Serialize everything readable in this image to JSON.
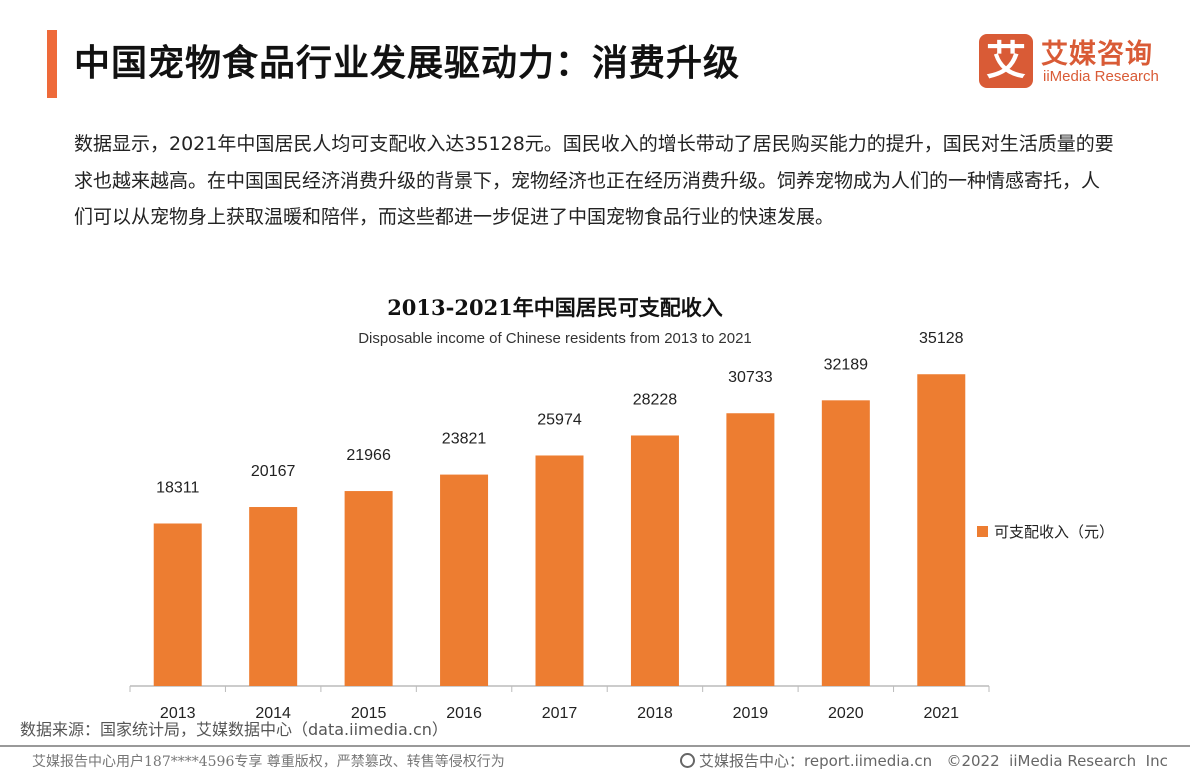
{
  "header": {
    "title": "中国宠物食品行业发展驱动力：消费升级"
  },
  "logo": {
    "mark": "艾",
    "cn": "艾媒咨询",
    "en": "iiMedia Research"
  },
  "paragraph": "数据显示，2021年中国居民人均可支配收入达35128元。国民收入的增长带动了居民购买能力的提升，国民对生活质量的要求也越来越高。在中国国民经济消费升级的背景下，宠物经济也正在经历消费升级。饲养宠物成为人们的一种情感寄托，人们可以从宠物身上获取温暖和陪伴，而这些都进一步促进了中国宠物食品行业的快速发展。",
  "chart_data": {
    "type": "bar",
    "title": "2013-2021年中国居民可支配收入",
    "subtitle": "Disposable income of Chinese residents from 2013 to 2021",
    "categories": [
      "2013",
      "2014",
      "2015",
      "2016",
      "2017",
      "2018",
      "2019",
      "2020",
      "2021"
    ],
    "series": [
      {
        "name": "可支配收入（元）",
        "values": [
          18311,
          20167,
          21966,
          23821,
          25974,
          28228,
          30733,
          32189,
          35128
        ],
        "color": "#ed7d31"
      }
    ],
    "ylim": [
      0,
      40000
    ],
    "grid": false,
    "legend": "right",
    "data_labels": true
  },
  "source": "数据来源：国家统计局，艾媒数据中心（data.iimedia.cn）",
  "footer": {
    "left": "艾媒报告中心用户187****4596专享 尊重版权，严禁篡改、转售等侵权行为",
    "right": "艾媒报告中心：report.iimedia.cn   ©2022  iiMedia Research  Inc"
  }
}
